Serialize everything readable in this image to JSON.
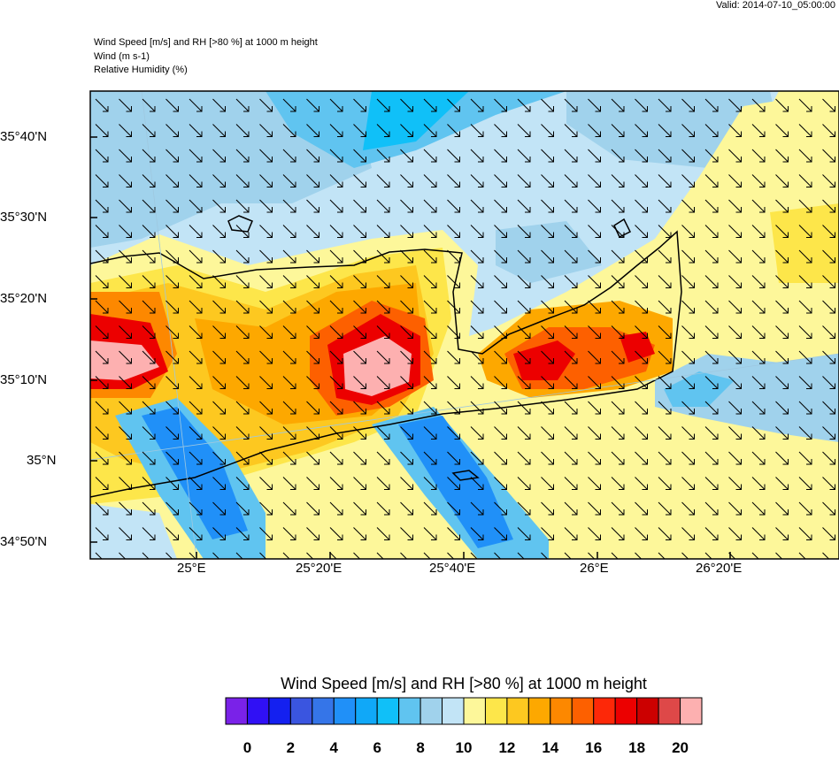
{
  "valid_time": "Valid: 2014-07-10_05:00:00",
  "header": {
    "line1": "Wind Speed [m/s] and RH [>80 %] at 1000 m height",
    "line2": "Wind   (m s-1)",
    "line3": "Relative Humidity   (%)"
  },
  "chart_data": {
    "type": "heatmap",
    "title": "Wind Speed [m/s] and RH [>80 %] at 1000 m height",
    "x_ticks": [
      "25°E",
      "25°20'E",
      "25°40'E",
      "26°E",
      "26°20'E"
    ],
    "y_ticks": [
      "35°40'N",
      "35°30'N",
      "35°20'N",
      "35°10'N",
      "35°N",
      "34°50'N"
    ],
    "wind_direction": "north-westerly (arrows pointing south-east)",
    "colorbar": {
      "title": "Wind Speed [m/s] and RH [>80 %] at 1000 m height",
      "labels": [
        "0",
        "2",
        "4",
        "6",
        "8",
        "10",
        "12",
        "14",
        "16",
        "18",
        "20"
      ],
      "colors": [
        "#7a22e8",
        "#3010f5",
        "#1420f0",
        "#3a55e0",
        "#3575e8",
        "#2090f8",
        "#10a8f8",
        "#10c0f8",
        "#60c4f0",
        "#a0d2ec",
        "#c2e4f6",
        "#fdf79a",
        "#fde64a",
        "#fdc820",
        "#fda800",
        "#fd8800",
        "#fd6000",
        "#fd2808",
        "#ec0000",
        "#cc0000",
        "#de4848",
        "#fdb0b0"
      ]
    }
  }
}
